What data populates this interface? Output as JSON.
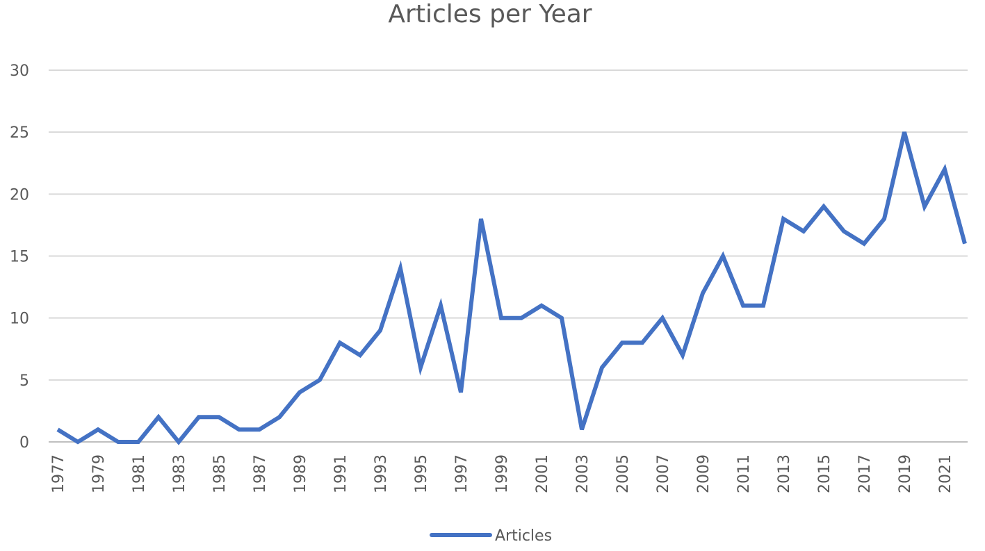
{
  "chart_data": {
    "type": "line",
    "title": "Articles per Year",
    "xlabel": "",
    "ylabel": "",
    "ylim": [
      0,
      30
    ],
    "y_ticks": [
      0,
      5,
      10,
      15,
      20,
      25,
      30
    ],
    "x": [
      1977,
      1978,
      1979,
      1980,
      1981,
      1982,
      1983,
      1984,
      1985,
      1986,
      1987,
      1988,
      1989,
      1990,
      1991,
      1992,
      1993,
      1994,
      1995,
      1996,
      1997,
      1998,
      1999,
      2000,
      2001,
      2002,
      2003,
      2004,
      2005,
      2006,
      2007,
      2008,
      2009,
      2010,
      2011,
      2012,
      2013,
      2014,
      2015,
      2016,
      2017,
      2018,
      2019,
      2020,
      2021,
      2022
    ],
    "x_tick_labels": [
      "1977",
      "1979",
      "1981",
      "1983",
      "1985",
      "1987",
      "1989",
      "1991",
      "1993",
      "1995",
      "1997",
      "1999",
      "2001",
      "2003",
      "2005",
      "2007",
      "2009",
      "2011",
      "2013",
      "2015",
      "2017",
      "2019",
      "2021"
    ],
    "series": [
      {
        "name": "Articles",
        "color": "#4472c4",
        "values": [
          1,
          0,
          1,
          0,
          0,
          2,
          0,
          2,
          2,
          1,
          1,
          2,
          4,
          5,
          8,
          7,
          9,
          14,
          6,
          11,
          4,
          18,
          10,
          10,
          11,
          10,
          1,
          6,
          8,
          8,
          10,
          7,
          12,
          15,
          11,
          11,
          18,
          17,
          19,
          17,
          16,
          18,
          25,
          19,
          22,
          16
        ]
      }
    ],
    "grid": true,
    "legend": "bottom"
  }
}
